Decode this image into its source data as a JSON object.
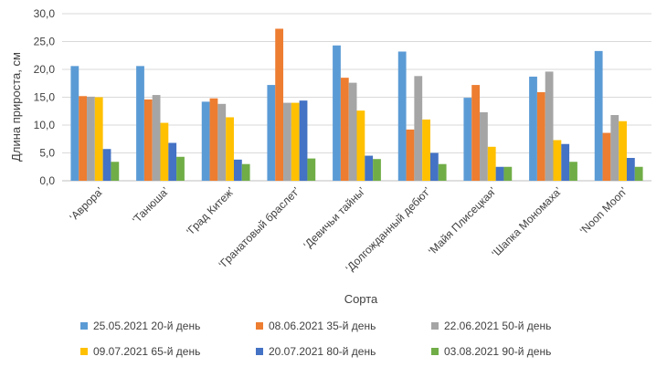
{
  "chart_data": {
    "type": "bar",
    "xlabel": "Сорта",
    "ylabel": "Длина прироста, см",
    "ylim": [
      0,
      30
    ],
    "yticks": [
      "0,0",
      "5,0",
      "10,0",
      "15,0",
      "20,0",
      "25,0",
      "30,0"
    ],
    "grid": true,
    "legend_position": "bottom",
    "categories": [
      "‘Аврора’",
      "‘Танюша’",
      "‘Град Китеж’",
      "‘Гранатовый браслет’",
      "‘Девичьи тайны’",
      "‘Долгожданный дебют’",
      "‘Майя  Плисецкая’",
      "‘Шапка Мономаха’",
      "‘Noon Moon’"
    ],
    "series": [
      {
        "name": "25.05.2021 20-й день",
        "color": "#5B9BD5",
        "values": [
          20.6,
          20.6,
          14.2,
          17.2,
          24.3,
          23.2,
          14.9,
          18.7,
          23.3
        ]
      },
      {
        "name": "08.06.2021 35-й день",
        "color": "#ED7D31",
        "values": [
          15.2,
          14.6,
          14.8,
          27.3,
          18.5,
          9.2,
          17.2,
          15.9,
          8.6
        ]
      },
      {
        "name": "22.06.2021 50-й день",
        "color": "#A5A5A5",
        "values": [
          15.1,
          15.4,
          13.8,
          14.0,
          17.6,
          18.8,
          12.3,
          19.6,
          11.8
        ]
      },
      {
        "name": "09.07.2021 65-й день",
        "color": "#FFC000",
        "values": [
          15.0,
          10.4,
          11.4,
          14.0,
          12.6,
          11.0,
          6.1,
          7.3,
          10.7
        ]
      },
      {
        "name": "20.07.2021 80-й день",
        "color": "#4472C4",
        "values": [
          5.7,
          6.8,
          3.8,
          14.4,
          4.5,
          5.0,
          2.5,
          6.6,
          4.1
        ]
      },
      {
        "name": "03.08.2021 90-й день",
        "color": "#70AD47",
        "values": [
          3.4,
          4.3,
          3.0,
          4.0,
          3.9,
          3.0,
          2.5,
          3.4,
          2.5
        ]
      }
    ]
  }
}
